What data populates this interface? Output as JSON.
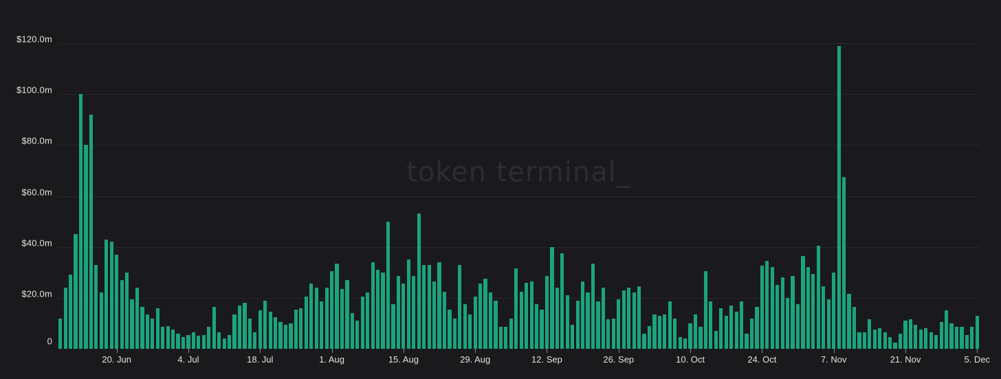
{
  "watermark": {
    "text": "token terminal_"
  },
  "colors": {
    "background": "#1a1a1d",
    "bar": "#1ba47d",
    "gridline": "#28282b",
    "axis_label": "#e2e2e2",
    "tick_mark": "#8a8a8a",
    "watermark": "#2c2c31"
  },
  "chart_data": {
    "type": "bar",
    "title": "",
    "xlabel": "",
    "ylabel": "",
    "unit": "$m",
    "ylim": [
      0,
      130
    ],
    "grid": "horizontal",
    "legend": "none",
    "y_ticks": [
      {
        "label": "$120.0m",
        "value": 120
      },
      {
        "label": "$100.0m",
        "value": 100
      },
      {
        "label": "$80.0m",
        "value": 80
      },
      {
        "label": "$60.0m",
        "value": 60
      },
      {
        "label": "$40.0m",
        "value": 40
      },
      {
        "label": "$20.0m",
        "value": 20
      },
      {
        "label": "0",
        "value": 0
      }
    ],
    "x_ticks": [
      {
        "label": "20. Jun",
        "index": 11
      },
      {
        "label": "4. Jul",
        "index": 25
      },
      {
        "label": "18. Jul",
        "index": 39
      },
      {
        "label": "1. Aug",
        "index": 53
      },
      {
        "label": "15. Aug",
        "index": 67
      },
      {
        "label": "29. Aug",
        "index": 81
      },
      {
        "label": "12. Sep",
        "index": 95
      },
      {
        "label": "26. Sep",
        "index": 109
      },
      {
        "label": "10. Oct",
        "index": 123
      },
      {
        "label": "24. Oct",
        "index": 137
      },
      {
        "label": "7. Nov",
        "index": 151
      },
      {
        "label": "21. Nov",
        "index": 165
      },
      {
        "label": "5. Dec",
        "index": 179
      }
    ],
    "values": [
      12,
      24,
      29,
      45,
      100,
      80,
      92,
      33,
      22,
      43,
      42,
      37,
      27,
      30,
      19.5,
      24,
      16.5,
      13.5,
      12,
      16,
      8.5,
      9,
      7.5,
      6,
      4.5,
      5.5,
      6.5,
      5,
      5.5,
      8.5,
      16.5,
      6.5,
      4,
      5.5,
      13.5,
      17,
      18,
      12,
      6.5,
      15,
      19,
      14.5,
      12.5,
      10.5,
      9.5,
      10,
      15.5,
      16,
      20.5,
      25.5,
      24,
      18.5,
      24,
      30.5,
      33.5,
      23.5,
      27,
      14,
      11,
      20.5,
      22,
      34,
      31,
      30,
      50,
      17.5,
      28.5,
      25.5,
      35,
      28.5,
      53,
      33,
      33,
      26.5,
      34,
      22.5,
      15.5,
      12,
      33,
      17.5,
      13.5,
      20.5,
      25.5,
      27.5,
      22,
      19,
      8.5,
      8.5,
      12,
      31.5,
      22.5,
      26,
      26.5,
      17.5,
      15.5,
      28.5,
      40,
      24,
      37.5,
      21,
      9.5,
      19,
      26.5,
      22,
      33.5,
      18.5,
      24,
      11.5,
      12,
      19.5,
      23,
      24,
      22,
      24.5,
      6,
      9,
      13.5,
      13,
      13.5,
      18.5,
      12,
      4.5,
      4,
      10,
      13.5,
      8.5,
      30.5,
      18.5,
      7,
      16,
      13,
      17,
      14.5,
      18.5,
      6,
      12,
      16.5,
      32.5,
      34.5,
      32,
      25,
      28,
      20,
      28.5,
      17.5,
      36.5,
      32,
      29.5,
      40.5,
      24.5,
      19.5,
      30,
      119,
      67.5,
      21.5,
      16.5,
      6.5,
      6.5,
      11.5,
      7.5,
      8,
      6.5,
      4.5,
      2.5,
      6,
      11,
      11.5,
      9.5,
      7.5,
      8,
      6.5,
      5.5,
      10.5,
      15,
      10,
      8.5,
      8.5,
      5.5,
      8.5,
      13
    ]
  }
}
